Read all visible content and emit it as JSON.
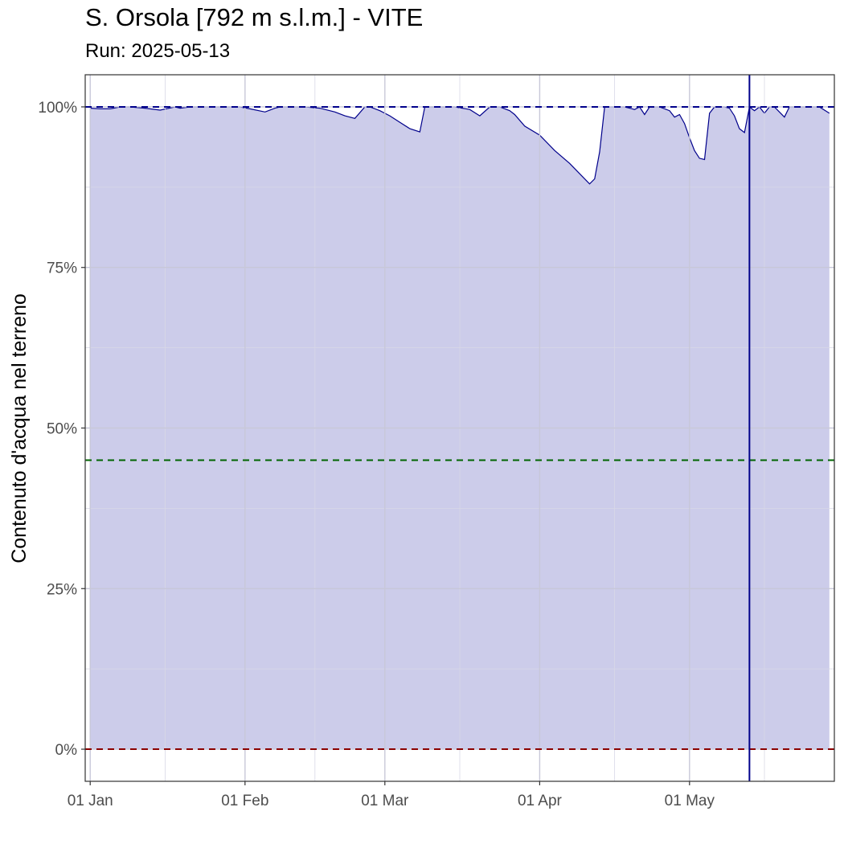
{
  "chart_data": {
    "type": "area",
    "title": "S. Orsola [792 m s.l.m.] - VITE",
    "subtitle": "Run: 2025-05-13",
    "xlabel": "",
    "ylabel": "Contenuto d'acqua nel terreno",
    "x_range": [
      "2024-12-31",
      "2025-05-30"
    ],
    "ylim": [
      -5,
      105
    ],
    "x_ticks": [
      {
        "date": "2025-01-01",
        "label": "01 Jan"
      },
      {
        "date": "2025-02-01",
        "label": "01 Feb"
      },
      {
        "date": "2025-03-01",
        "label": "01 Mar"
      },
      {
        "date": "2025-04-01",
        "label": "01 Apr"
      },
      {
        "date": "2025-05-01",
        "label": "01 May"
      }
    ],
    "x_minor_ticks": [
      "2025-01-16",
      "2025-02-15",
      "2025-03-16",
      "2025-04-16",
      "2025-05-16"
    ],
    "y_ticks": [
      {
        "value": 0,
        "label": "0%"
      },
      {
        "value": 25,
        "label": "25%"
      },
      {
        "value": 50,
        "label": "50%"
      },
      {
        "value": 75,
        "label": "75%"
      },
      {
        "value": 100,
        "label": "100%"
      }
    ],
    "y_minor_ticks": [
      12.5,
      37.5,
      62.5,
      87.5
    ],
    "grid": true,
    "colors": {
      "fill": "#ccccea",
      "line": "#00008b",
      "ref_upper": "#00008b",
      "ref_middle": "#006400",
      "ref_lower": "#8b0000",
      "run_line": "#00008b",
      "grid_major": "#c8c8d8",
      "grid_minor": "#d8d8e6"
    },
    "reference_lines": [
      {
        "value": 100,
        "color": "#00008b",
        "style": "dashed"
      },
      {
        "value": 45,
        "color": "#006400",
        "style": "dashed"
      },
      {
        "value": 0,
        "color": "#8b0000",
        "style": "dashed"
      }
    ],
    "run_date": "2025-05-13",
    "series": [
      {
        "x": [
          "2025-01-01",
          "2025-01-03",
          "2025-01-05",
          "2025-01-07",
          "2025-01-09",
          "2025-01-12",
          "2025-01-15",
          "2025-01-18",
          "2025-01-19",
          "2025-01-21",
          "2025-01-23",
          "2025-01-25",
          "2025-01-28",
          "2025-01-31",
          "2025-02-02",
          "2025-02-05",
          "2025-02-07",
          "2025-02-08",
          "2025-02-10",
          "2025-02-13",
          "2025-02-16",
          "2025-02-19",
          "2025-02-21",
          "2025-02-23",
          "2025-02-25",
          "2025-02-26",
          "2025-02-28",
          "2025-03-02",
          "2025-03-04",
          "2025-03-06",
          "2025-03-08",
          "2025-03-09",
          "2025-03-10",
          "2025-03-12",
          "2025-03-15",
          "2025-03-18",
          "2025-03-20",
          "2025-03-22",
          "2025-03-24",
          "2025-03-26",
          "2025-03-27",
          "2025-03-29",
          "2025-04-01",
          "2025-04-04",
          "2025-04-07",
          "2025-04-09",
          "2025-04-11",
          "2025-04-12",
          "2025-04-13",
          "2025-04-14",
          "2025-04-15",
          "2025-04-16",
          "2025-04-18",
          "2025-04-19",
          "2025-04-20",
          "2025-04-21",
          "2025-04-22",
          "2025-04-23",
          "2025-04-24",
          "2025-04-25",
          "2025-04-27",
          "2025-04-28",
          "2025-04-29",
          "2025-04-30",
          "2025-05-01",
          "2025-05-02",
          "2025-05-03",
          "2025-05-04",
          "2025-05-05",
          "2025-05-06",
          "2025-05-08",
          "2025-05-09",
          "2025-05-10",
          "2025-05-11",
          "2025-05-12",
          "2025-05-13",
          "2025-05-14",
          "2025-05-15",
          "2025-05-16",
          "2025-05-17",
          "2025-05-18",
          "2025-05-20",
          "2025-05-21",
          "2025-05-22",
          "2025-05-24",
          "2025-05-26",
          "2025-05-27",
          "2025-05-29"
        ],
        "values": [
          99.8,
          99.7,
          99.7,
          100,
          100,
          99.8,
          99.5,
          100,
          99.8,
          100,
          100,
          100,
          100,
          100,
          99.7,
          99.2,
          99.8,
          100,
          100,
          100,
          99.8,
          99.2,
          98.6,
          98.2,
          100,
          100,
          99.4,
          98.6,
          97.6,
          96.6,
          96.1,
          100,
          100,
          100,
          100,
          99.6,
          98.6,
          100,
          100,
          99.4,
          98.8,
          97,
          95.6,
          93.2,
          91.2,
          89.6,
          88,
          88.8,
          93,
          100,
          100,
          100,
          100,
          99.8,
          99.6,
          100,
          98.8,
          100,
          100,
          100,
          99.4,
          98.4,
          98.8,
          97.4,
          95.2,
          93.2,
          92,
          91.8,
          99,
          100,
          100,
          99.8,
          98.6,
          96.6,
          96,
          100,
          99.4,
          100,
          99,
          100,
          100,
          98.4,
          100,
          100,
          100,
          100,
          100,
          99
        ]
      }
    ]
  }
}
